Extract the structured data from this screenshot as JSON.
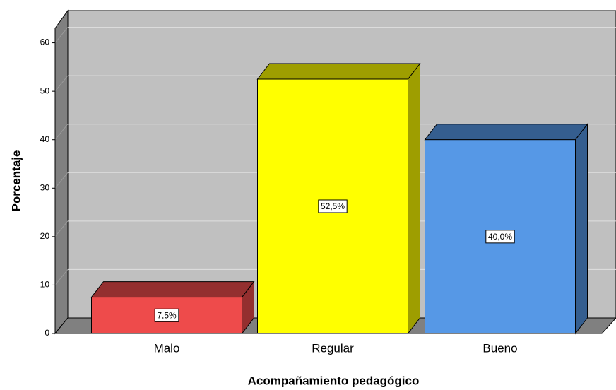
{
  "chart_data": {
    "type": "bar3d",
    "categories": [
      "Malo",
      "Regular",
      "Bueno"
    ],
    "values": [
      7.5,
      52.5,
      40.0
    ],
    "value_labels": [
      "7,5%",
      "52,5%",
      "40,0%"
    ],
    "colors": [
      "#ee4b4b",
      "#ffff00",
      "#5698e6"
    ],
    "ylim": [
      0,
      63
    ],
    "yticks": [
      0,
      10,
      20,
      30,
      40,
      50,
      60
    ],
    "grid": true,
    "ylabel": "Porcentaje",
    "xlabel": "Acompañamiento pedagógico"
  }
}
